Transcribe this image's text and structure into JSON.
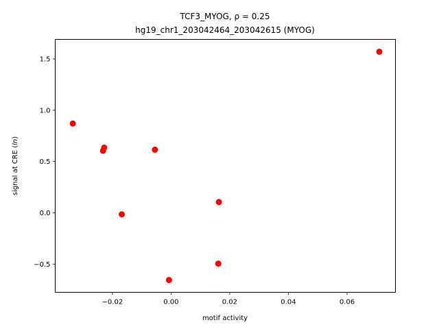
{
  "chart_data": {
    "type": "scatter",
    "title_line1": "TCF3_MYOG, ρ = 0.25",
    "title_line2": "hg19_chr1_203042464_203042615 (MYOG)",
    "xlabel": "motif activity",
    "ylabel": "signal at CRE (ln)",
    "xlim": [
      -0.0395,
      0.0765
    ],
    "ylim": [
      -0.775,
      1.69
    ],
    "xticks": [
      -0.02,
      0.0,
      0.02,
      0.04,
      0.06
    ],
    "xtick_labels": [
      "−0.02",
      "0.00",
      "0.02",
      "0.04",
      "0.06"
    ],
    "yticks": [
      -0.5,
      0.0,
      0.5,
      1.0,
      1.5
    ],
    "ytick_labels": [
      "−0.5",
      "0.0",
      "0.5",
      "1.0",
      "1.5"
    ],
    "grid": false,
    "marker_color": "#ff0000",
    "points": [
      {
        "x": -0.0335,
        "y": 0.87
      },
      {
        "x": -0.0228,
        "y": 0.635
      },
      {
        "x": -0.0232,
        "y": 0.605
      },
      {
        "x": -0.0055,
        "y": 0.615
      },
      {
        "x": -0.0168,
        "y": -0.015
      },
      {
        "x": 0.0163,
        "y": 0.105
      },
      {
        "x": 0.0161,
        "y": -0.495
      },
      {
        "x": -0.0007,
        "y": -0.655
      },
      {
        "x": 0.071,
        "y": 1.57
      }
    ]
  }
}
